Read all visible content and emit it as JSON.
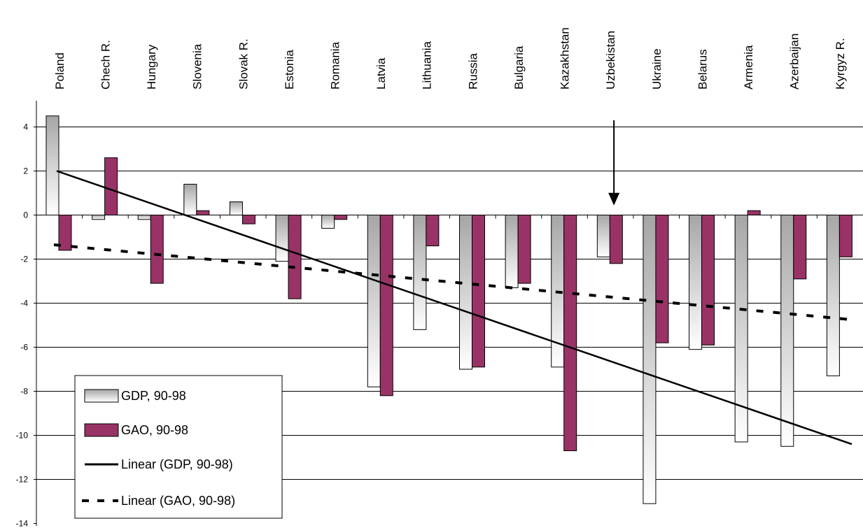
{
  "chart_data": {
    "type": "bar",
    "categories": [
      "Poland",
      "Chech R.",
      "Hungary",
      "Slovenia",
      "Slovak R.",
      "Estonia",
      "Romania",
      "Latvia",
      "Lithuania",
      "Russia",
      "Bulgaria",
      "Kazakhstan",
      "Uzbekistan",
      "Ukraine",
      "Belarus",
      "Armenia",
      "Azerbaijan",
      "Kyrgyz R."
    ],
    "series": [
      {
        "name": "GDP, 90-98",
        "values": [
          4.5,
          -0.2,
          -0.2,
          1.4,
          0.6,
          -2.1,
          -0.6,
          -7.8,
          -5.2,
          -7.0,
          -3.3,
          -6.9,
          -1.9,
          -13.1,
          -6.1,
          -10.3,
          -10.5,
          -7.3
        ],
        "color": "#a6a6a6",
        "style": "gradient"
      },
      {
        "name": "GAO, 90-98",
        "values": [
          -1.6,
          2.6,
          -3.1,
          0.2,
          -0.4,
          -3.8,
          -0.2,
          -8.2,
          -1.4,
          -6.9,
          -3.1,
          -10.7,
          -2.2,
          -5.8,
          -5.9,
          0.2,
          -2.9,
          -1.9
        ],
        "color": "#993366",
        "style": "solid"
      }
    ],
    "trendlines": [
      {
        "name": "Linear (GDP, 90-98)",
        "start": 2.0,
        "end": -10.4,
        "style": "solid"
      },
      {
        "name": "Linear (GAO, 90-98)",
        "start": -1.35,
        "end": -4.75,
        "style": "dashed"
      }
    ],
    "y_ticks": [
      "4",
      "2",
      "0",
      "-2",
      "-4",
      "-6",
      "-8",
      "-10",
      "-12",
      "-14"
    ],
    "ylim": [
      -14,
      5
    ],
    "grid": true,
    "category_labels_position": "top",
    "legend_position": "bottom-left",
    "annotation": {
      "type": "arrow",
      "category": "Uzbekistan",
      "from": 4.3,
      "to": 0.5
    }
  }
}
